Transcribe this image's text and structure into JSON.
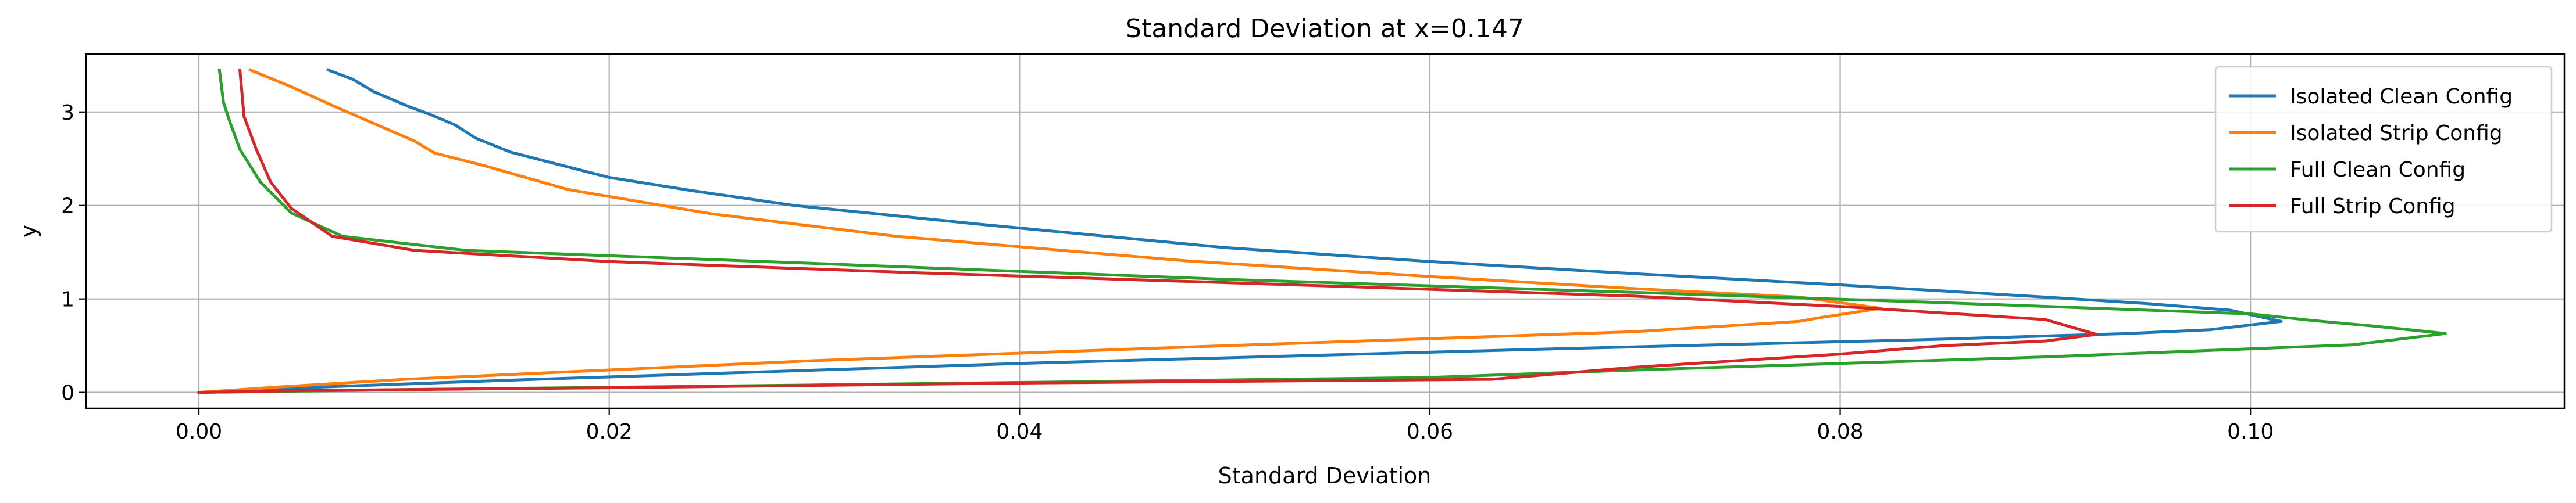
{
  "chart_data": {
    "type": "line",
    "title": "Standard Deviation at x=0.147",
    "xlabel": "Standard Deviation",
    "ylabel": "y",
    "xlim": [
      -0.0055,
      0.1153
    ],
    "ylim": [
      -0.17,
      3.62
    ],
    "xticks": [
      0.0,
      0.02,
      0.04,
      0.06,
      0.08,
      0.1
    ],
    "xtick_labels": [
      "0.00",
      "0.02",
      "0.04",
      "0.06",
      "0.08",
      "0.10"
    ],
    "yticks": [
      0,
      1,
      2,
      3
    ],
    "ytick_labels": [
      "0",
      "1",
      "2",
      "3"
    ],
    "grid": true,
    "legend_position": "upper-right",
    "series": [
      {
        "name": "Isolated Clean Config",
        "color": "#1f77b4",
        "x": [
          0.0063,
          0.0075,
          0.0085,
          0.0102,
          0.0112,
          0.0125,
          0.0135,
          0.0152,
          0.0175,
          0.02,
          0.024,
          0.029,
          0.038,
          0.05,
          0.06,
          0.07,
          0.08,
          0.09,
          0.095,
          0.099,
          0.1015,
          0.098,
          0.094,
          0.085,
          0.065,
          0.04,
          0.015,
          0.005,
          0.0
        ],
        "y": [
          3.45,
          3.35,
          3.22,
          3.06,
          2.98,
          2.86,
          2.72,
          2.57,
          2.44,
          2.3,
          2.16,
          2.0,
          1.8,
          1.55,
          1.4,
          1.27,
          1.15,
          1.02,
          0.95,
          0.88,
          0.76,
          0.67,
          0.63,
          0.57,
          0.46,
          0.31,
          0.13,
          0.05,
          0.0
        ]
      },
      {
        "name": "Isolated Strip Config",
        "color": "#ff7f0e",
        "x": [
          0.0025,
          0.0045,
          0.0065,
          0.0085,
          0.0105,
          0.0115,
          0.014,
          0.018,
          0.025,
          0.034,
          0.048,
          0.06,
          0.07,
          0.078,
          0.082,
          0.079,
          0.078,
          0.07,
          0.05,
          0.03,
          0.02,
          0.01,
          0.004,
          0.0
        ],
        "y": [
          3.45,
          3.27,
          3.07,
          2.88,
          2.69,
          2.56,
          2.42,
          2.17,
          1.91,
          1.67,
          1.41,
          1.24,
          1.11,
          1.02,
          0.9,
          0.8,
          0.76,
          0.65,
          0.5,
          0.34,
          0.24,
          0.14,
          0.06,
          0.0
        ]
      },
      {
        "name": "Full Clean Config",
        "color": "#2ca02c",
        "x": [
          0.001,
          0.0012,
          0.0015,
          0.002,
          0.003,
          0.0045,
          0.007,
          0.013,
          0.03,
          0.05,
          0.07,
          0.085,
          0.1,
          0.103,
          0.106,
          0.1095,
          0.105,
          0.09,
          0.07,
          0.06,
          0.03,
          0.01,
          0.0
        ],
        "y": [
          3.45,
          3.1,
          2.9,
          2.6,
          2.25,
          1.92,
          1.67,
          1.52,
          1.38,
          1.21,
          1.07,
          0.96,
          0.84,
          0.77,
          0.71,
          0.63,
          0.51,
          0.38,
          0.24,
          0.16,
          0.08,
          0.03,
          0.0
        ]
      },
      {
        "name": "Full Strip Config",
        "color": "#d62728",
        "x": [
          0.002,
          0.0022,
          0.0028,
          0.0035,
          0.0045,
          0.0065,
          0.0105,
          0.02,
          0.035,
          0.055,
          0.07,
          0.08,
          0.09,
          0.0925,
          0.09,
          0.085,
          0.08,
          0.07,
          0.063,
          0.04,
          0.02,
          0.005,
          0.0
        ],
        "y": [
          3.45,
          2.95,
          2.6,
          2.25,
          1.97,
          1.67,
          1.52,
          1.4,
          1.28,
          1.14,
          1.03,
          0.92,
          0.78,
          0.62,
          0.55,
          0.5,
          0.41,
          0.27,
          0.14,
          0.1,
          0.05,
          0.02,
          0.0
        ]
      }
    ]
  }
}
